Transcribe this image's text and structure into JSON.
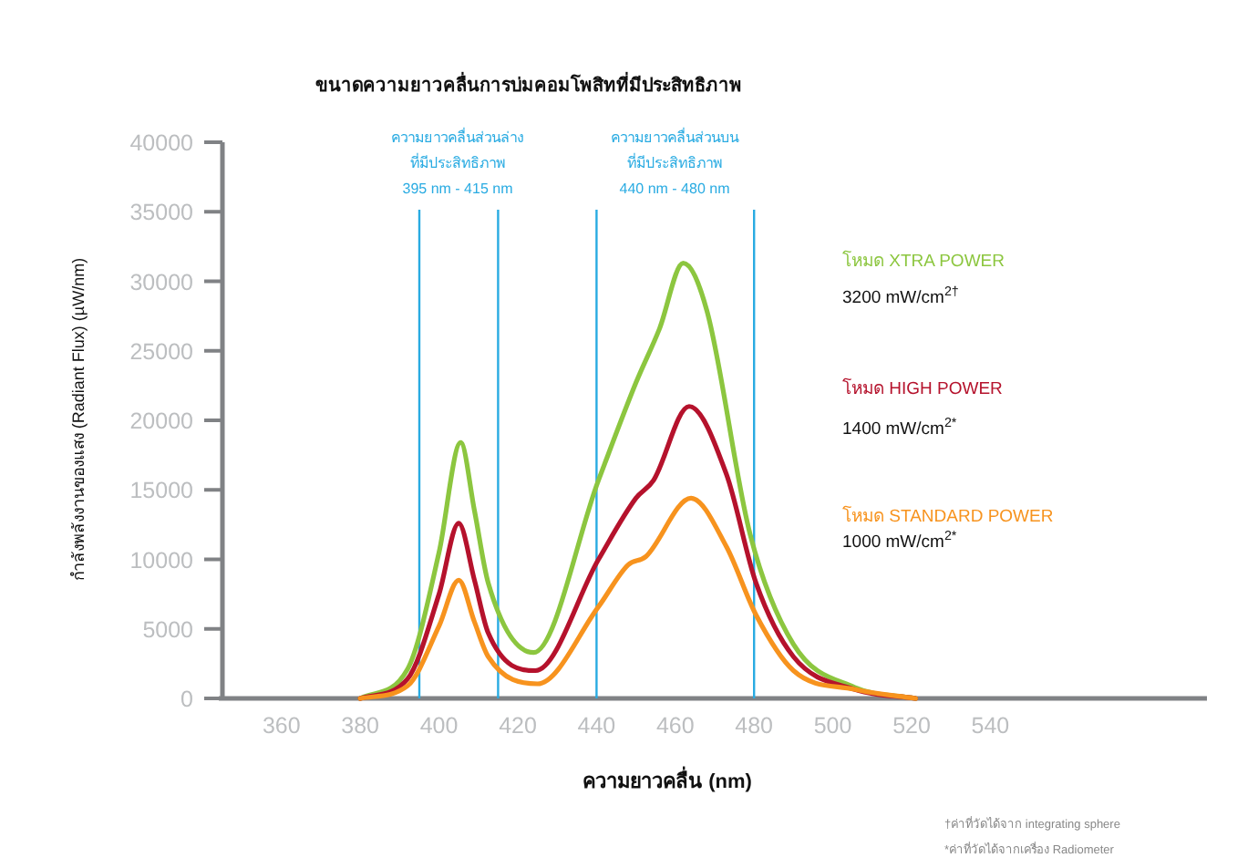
{
  "chart_data": {
    "type": "line",
    "title": "ขนาดความยาวคลื่นการบ่มคอมโพสิทที่มีประสิทธิภาพ",
    "xlabel": "ความยาวคลื่น (nm)",
    "ylabel": "กำลังพลังงานของแสง (Radiant Flux)   (µW/nm)",
    "xlim": [
      345,
      595
    ],
    "xticks": [
      360,
      380,
      400,
      420,
      440,
      460,
      480,
      500,
      520,
      540
    ],
    "ylim": [
      0,
      40000
    ],
    "yticks": [
      0,
      5000,
      10000,
      15000,
      20000,
      25000,
      30000,
      35000,
      40000
    ],
    "grid": false,
    "legend": "right",
    "series": [
      {
        "name": "โหมด XTRA POWER",
        "color": "#8cc63f",
        "x": [
          380,
          392,
          400,
          405.5,
          409,
          412.5,
          424,
          440.5,
          450,
          456,
          462,
          468,
          479,
          490,
          505.5,
          521
        ],
        "values": [
          0,
          2100,
          10500,
          18400,
          13500,
          8300,
          3300,
          15700,
          22700,
          26600,
          31300,
          27900,
          11800,
          3900,
          800,
          0
        ]
      },
      {
        "name": "โหมด HIGH POWER",
        "color": "#b5122c",
        "x": [
          380,
          392,
          400,
          405,
          409,
          412.5,
          424.5,
          440.5,
          450,
          454.5,
          463.5,
          473,
          480.5,
          490,
          505.5,
          521
        ],
        "values": [
          0,
          1400,
          7500,
          12600,
          8500,
          4700,
          2000,
          10000,
          14400,
          15700,
          21000,
          16100,
          8300,
          3000,
          650,
          0
        ]
      },
      {
        "name": "โหมด STANDARD POWER",
        "color": "#f7931e",
        "x": [
          380,
          392,
          400,
          405,
          409,
          412.5,
          425,
          440.5,
          448,
          452.5,
          464,
          473,
          480.5,
          490,
          505.5,
          521
        ],
        "values": [
          0,
          900,
          5200,
          8500,
          5500,
          3000,
          1050,
          6600,
          9600,
          10200,
          14400,
          10900,
          6000,
          2000,
          650,
          0
        ]
      }
    ],
    "ref_lines": [
      {
        "axis": "x",
        "value": 395,
        "color": "#29abe2"
      },
      {
        "axis": "x",
        "value": 415,
        "color": "#29abe2"
      },
      {
        "axis": "x",
        "value": 440,
        "color": "#29abe2"
      },
      {
        "axis": "x",
        "value": 480,
        "color": "#29abe2"
      }
    ],
    "annotations": [
      "ความยาวคลื่นส่วนล่าง\nที่มีประสิทธิภาพ\n395 nm - 415 nm",
      "ความยาวคลื่นส่วนบน\nที่มีประสิทธิภาพ\n440 nm - 480 nm",
      "3200 mW/cm$^{2†}$",
      "1400 mW/cm$^{2*}$",
      "1000 mW/cm$^{2*}$",
      "†ค่าที่วัดได้จาก integrating sphere",
      "*ค่าที่วัดได้จากเครื่อง Radiometer"
    ]
  }
}
